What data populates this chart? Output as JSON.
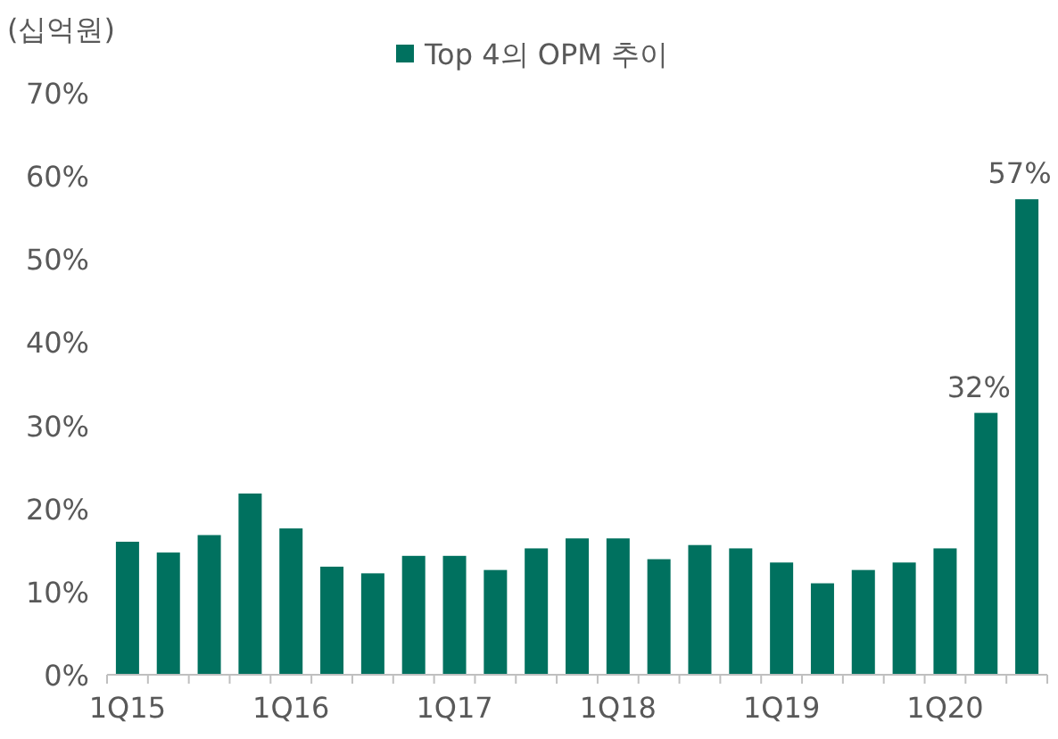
{
  "chart_data": {
    "type": "bar",
    "categories": [
      "1Q15",
      null,
      null,
      null,
      "1Q16",
      null,
      null,
      null,
      "1Q17",
      null,
      null,
      null,
      "1Q18",
      null,
      null,
      null,
      "1Q19",
      null,
      null,
      null,
      "1Q20",
      null,
      null
    ],
    "series": [
      {
        "name": "Top 4의 OPM 추이",
        "color": "#00715f",
        "values": [
          16,
          14.7,
          16.8,
          21.8,
          17.6,
          13,
          12.2,
          14.3,
          14.3,
          12.6,
          15.2,
          16.4,
          16.4,
          13.9,
          15.6,
          15.2,
          13.5,
          11,
          12.6,
          13.5,
          15.2,
          31.5,
          57.2
        ],
        "value_labels": [
          null,
          null,
          null,
          null,
          null,
          null,
          null,
          null,
          null,
          null,
          null,
          null,
          null,
          null,
          null,
          null,
          null,
          null,
          null,
          null,
          null,
          "32%",
          "57%"
        ]
      }
    ],
    "ylim": [
      0,
      70
    ],
    "yticks": [
      {
        "value": 0,
        "label": "0%"
      },
      {
        "value": 10,
        "label": "10%"
      },
      {
        "value": 20,
        "label": "20%"
      },
      {
        "value": 30,
        "label": "30%"
      },
      {
        "value": 40,
        "label": "40%"
      },
      {
        "value": 50,
        "label": "50%"
      },
      {
        "value": 60,
        "label": "60%"
      },
      {
        "value": 70,
        "label": "70%"
      }
    ],
    "annotations": [
      "(십억원)"
    ],
    "legend": "top",
    "grid": false
  }
}
